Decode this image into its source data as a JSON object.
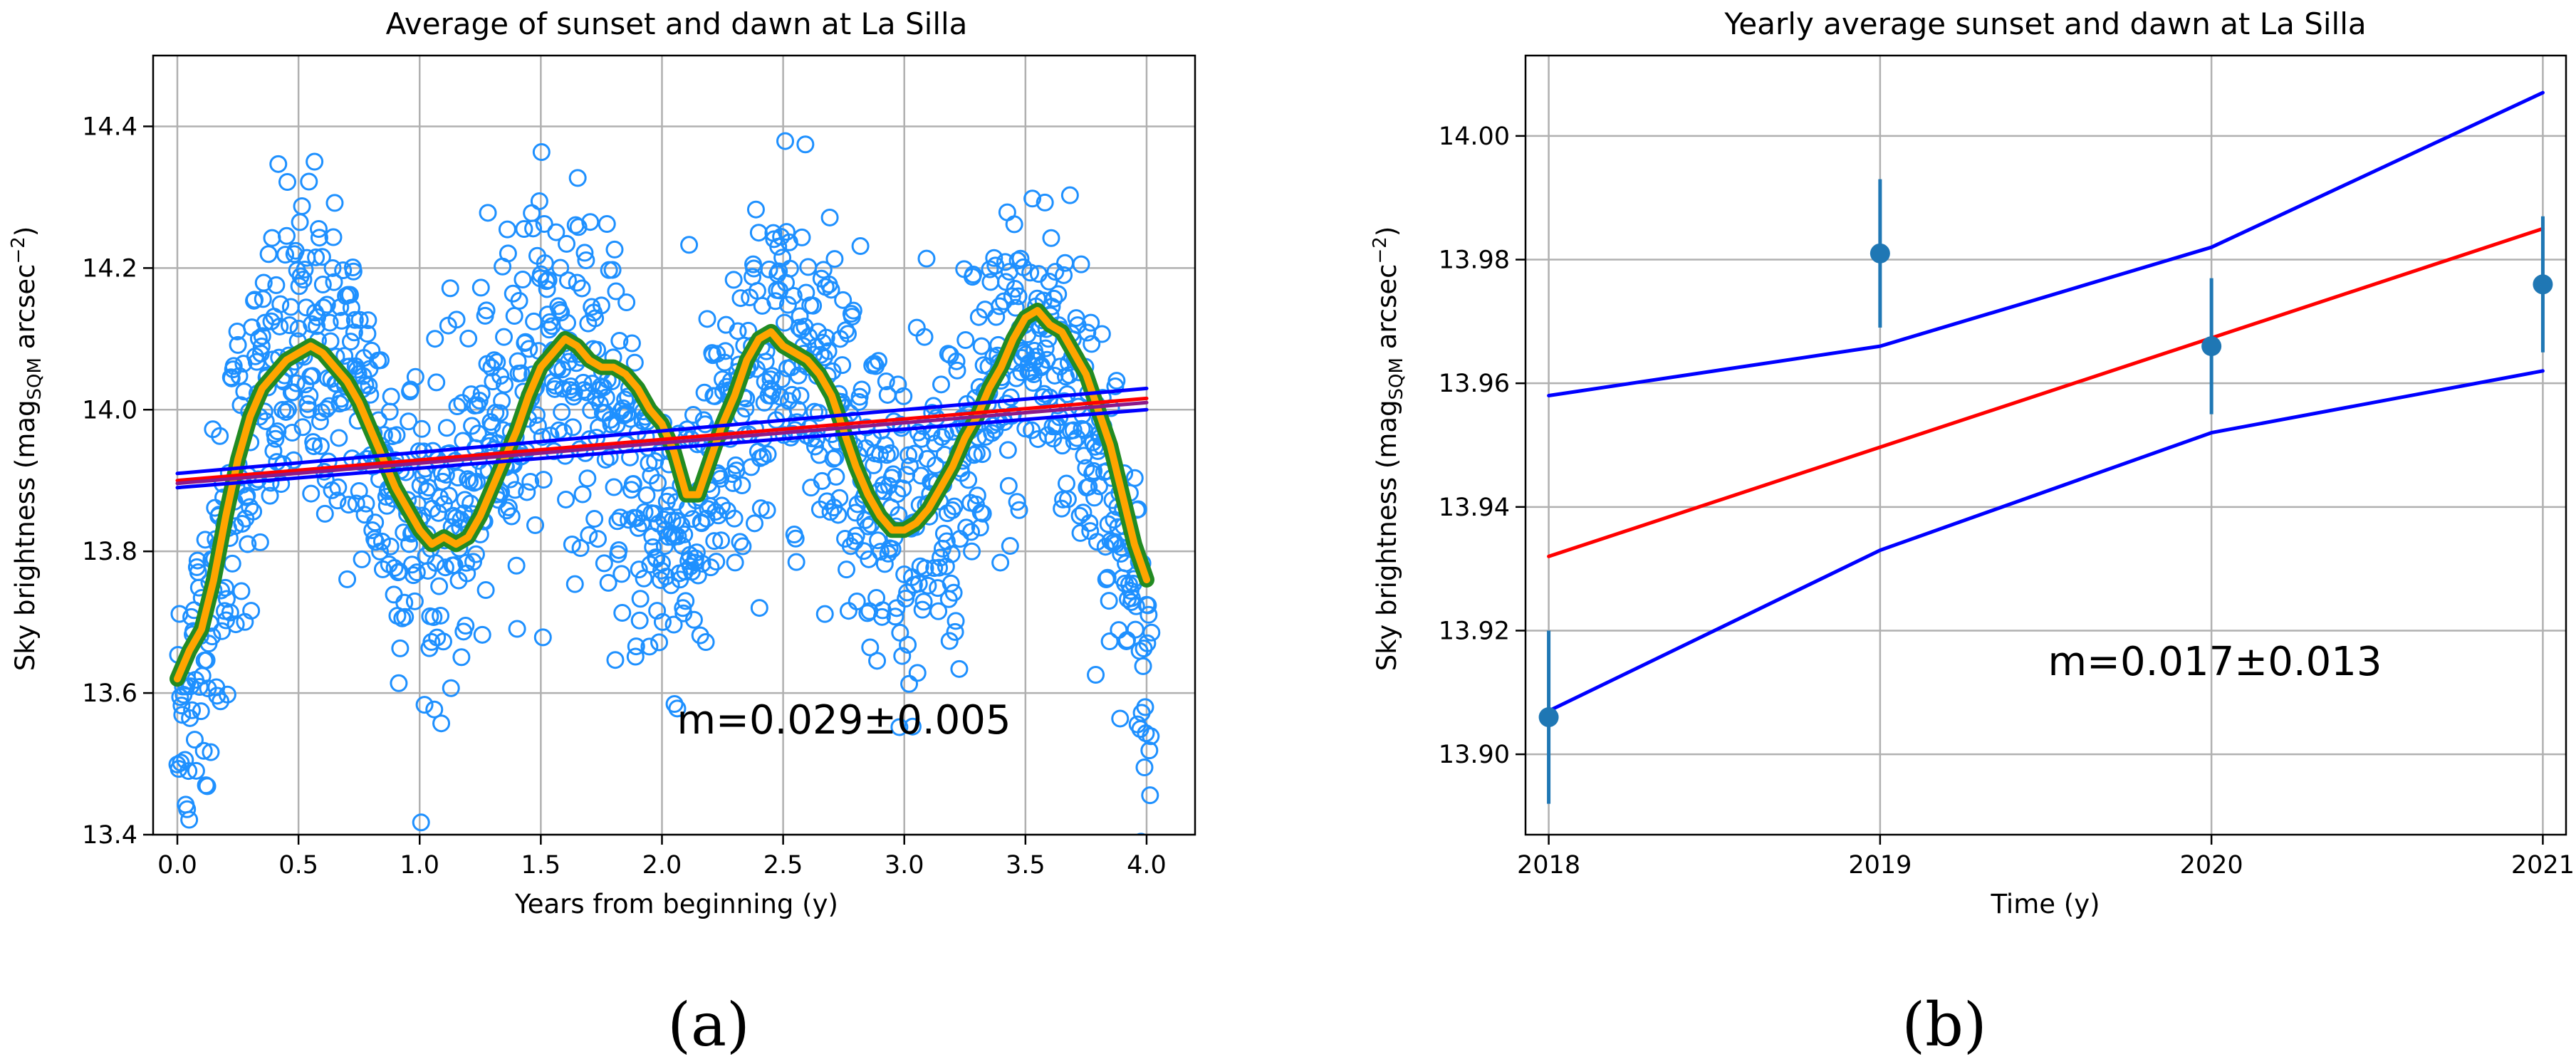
{
  "chart_data": [
    {
      "panel": "(a)",
      "type": "scatter",
      "title": "Average of sunset and dawn at La Silla",
      "xlabel": "Years from beginning (y)",
      "ylabel": "Sky brightness (mag_SQM arcsec^-2)",
      "ylabel_parts": {
        "pre": "Sky brightness (mag",
        "sub": "SQM",
        "mid": " arcsec",
        "sup": "−2",
        "post": ")"
      },
      "xlim": [
        -0.1,
        4.2
      ],
      "ylim": [
        13.4,
        14.5
      ],
      "xticks": [
        "0.0",
        "0.5",
        "1.0",
        "1.5",
        "2.0",
        "2.5",
        "3.0",
        "3.5",
        "4.0"
      ],
      "yticks": [
        "13.4",
        "13.6",
        "13.8",
        "14.0",
        "14.2",
        "14.4"
      ],
      "grid": true,
      "annotation": "m=0.029±0.005",
      "series": [
        {
          "name": "nightly averages",
          "kind": "scatter",
          "color": "#1e90ff",
          "marker": "open-circle",
          "model": {
            "type": "sinusoid",
            "offset": 13.96,
            "amplitude": 0.13,
            "period": 1.0,
            "peak_at": 0.55,
            "noise_sd": 0.12,
            "x_range": [
              0,
              4.02
            ],
            "count": 1400
          }
        },
        {
          "name": "running mean (outer)",
          "kind": "line",
          "color": "#228b22",
          "x": [
            0.0,
            0.05,
            0.1,
            0.15,
            0.2,
            0.25,
            0.3,
            0.35,
            0.4,
            0.45,
            0.5,
            0.55,
            0.6,
            0.65,
            0.7,
            0.75,
            0.8,
            0.85,
            0.9,
            0.95,
            1.0,
            1.05,
            1.1,
            1.15,
            1.2,
            1.25,
            1.3,
            1.35,
            1.4,
            1.45,
            1.5,
            1.55,
            1.6,
            1.65,
            1.7,
            1.75,
            1.8,
            1.85,
            1.9,
            1.95,
            2.0,
            2.05,
            2.1,
            2.15,
            2.2,
            2.25,
            2.3,
            2.35,
            2.4,
            2.45,
            2.5,
            2.55,
            2.6,
            2.65,
            2.7,
            2.75,
            2.8,
            2.85,
            2.9,
            2.95,
            3.0,
            3.05,
            3.1,
            3.15,
            3.2,
            3.25,
            3.3,
            3.35,
            3.4,
            3.45,
            3.5,
            3.55,
            3.6,
            3.65,
            3.7,
            3.75,
            3.8,
            3.85,
            3.9,
            3.95,
            4.0
          ],
          "y": [
            13.62,
            13.66,
            13.69,
            13.76,
            13.85,
            13.93,
            13.99,
            14.03,
            14.05,
            14.07,
            14.08,
            14.09,
            14.08,
            14.06,
            14.04,
            14.01,
            13.97,
            13.93,
            13.89,
            13.86,
            13.83,
            13.81,
            13.82,
            13.81,
            13.82,
            13.85,
            13.89,
            13.93,
            13.97,
            14.02,
            14.06,
            14.08,
            14.1,
            14.09,
            14.07,
            14.06,
            14.06,
            14.05,
            14.03,
            14.0,
            13.98,
            13.94,
            13.88,
            13.88,
            13.93,
            13.98,
            14.02,
            14.07,
            14.1,
            14.11,
            14.09,
            14.08,
            14.07,
            14.05,
            14.02,
            13.97,
            13.92,
            13.88,
            13.85,
            13.83,
            13.83,
            13.84,
            13.86,
            13.89,
            13.92,
            13.96,
            13.99,
            14.03,
            14.06,
            14.1,
            14.13,
            14.14,
            14.12,
            14.11,
            14.08,
            14.05,
            14.0,
            13.95,
            13.88,
            13.81,
            13.76
          ]
        },
        {
          "name": "running mean (inner)",
          "kind": "line",
          "color": "#ffa500",
          "same_as": "running mean (outer)"
        },
        {
          "name": "linear fit",
          "kind": "line",
          "color": "#ff0000",
          "x": [
            0.0,
            4.0
          ],
          "y": [
            13.9,
            14.016
          ]
        },
        {
          "name": "fit upper bound",
          "kind": "line",
          "color": "#0000ff",
          "x": [
            0.0,
            4.0
          ],
          "y": [
            13.91,
            14.03
          ]
        },
        {
          "name": "fit lower bound",
          "kind": "line",
          "color": "#0000ff",
          "x": [
            0.0,
            4.0
          ],
          "y": [
            13.89,
            14.0
          ]
        },
        {
          "name": "fit band (purple)",
          "kind": "line",
          "color": "#8b1a8b",
          "x": [
            0.0,
            4.0
          ],
          "y": [
            13.896,
            14.01
          ]
        }
      ]
    },
    {
      "panel": "(b)",
      "type": "line",
      "title": "Yearly average sunset and dawn at La Silla",
      "xlabel": "Time (y)",
      "ylabel": "Sky brightness (mag_SQM arcsec^-2)",
      "ylabel_parts": {
        "pre": "Sky brightness (mag",
        "sub": "SQM",
        "mid": " arcsec",
        "sup": "−2",
        "post": ")"
      },
      "xlim": [
        2017.93,
        2021.07
      ],
      "ylim": [
        13.887,
        14.013
      ],
      "xticks": [
        "2018",
        "2019",
        "2020",
        "2021"
      ],
      "yticks": [
        "13.90",
        "13.92",
        "13.94",
        "13.96",
        "13.98",
        "14.00"
      ],
      "grid": true,
      "annotation": "m=0.017±0.013",
      "series": [
        {
          "name": "yearly averages",
          "kind": "errorbar",
          "color": "#1f77b4",
          "x": [
            2018,
            2019,
            2020,
            2021
          ],
          "y": [
            13.906,
            13.981,
            13.966,
            13.976
          ],
          "err": [
            0.014,
            0.012,
            0.011,
            0.011
          ]
        },
        {
          "name": "linear fit",
          "kind": "line",
          "color": "#ff0000",
          "x": [
            2018,
            2021
          ],
          "y": [
            13.932,
            13.985
          ]
        },
        {
          "name": "upper bound",
          "kind": "line",
          "color": "#0000ff",
          "x": [
            2018,
            2019,
            2020,
            2021
          ],
          "y": [
            13.958,
            13.966,
            13.982,
            14.007
          ]
        },
        {
          "name": "lower bound",
          "kind": "line",
          "color": "#0000ff",
          "x": [
            2018,
            2019,
            2020,
            2021
          ],
          "y": [
            13.907,
            13.933,
            13.952,
            13.962
          ]
        }
      ]
    }
  ],
  "panel_labels": [
    "(a)",
    "(b)"
  ]
}
